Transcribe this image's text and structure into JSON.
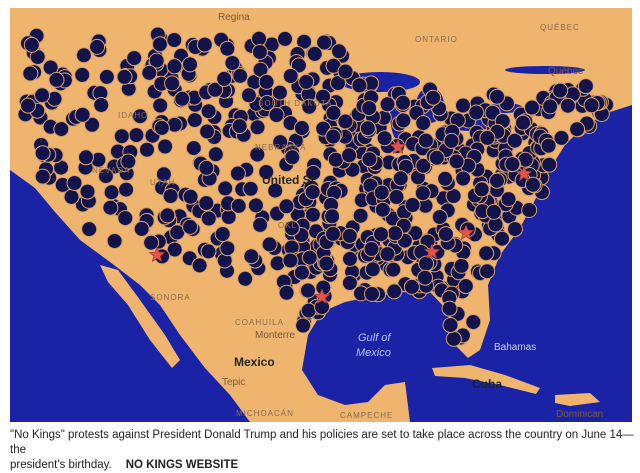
{
  "map": {
    "labels": [
      "Regina",
      "ONTARIO",
      "QUÉBEC",
      "Québec",
      "IDAHO",
      "NEVADA",
      "UTAH",
      "SOUTH DAKOTA",
      "NEBRASKA",
      "United St",
      "OKL",
      "SONORA",
      "COAHUILA",
      "Monterre",
      "Mexico",
      "Gulf of",
      "Mexico",
      "Bahamas",
      "Cuba",
      "Dominican",
      "MICHOACÁN",
      "CAMPECHE",
      "Tepic"
    ]
  },
  "caption": {
    "lines": [
      "\"No Kings\" protests against President Donald Trump and his policies are set to take place across the country on June 14—the",
      "president's birthday."
    ],
    "credit": "NO KINGS WEBSITE"
  }
}
